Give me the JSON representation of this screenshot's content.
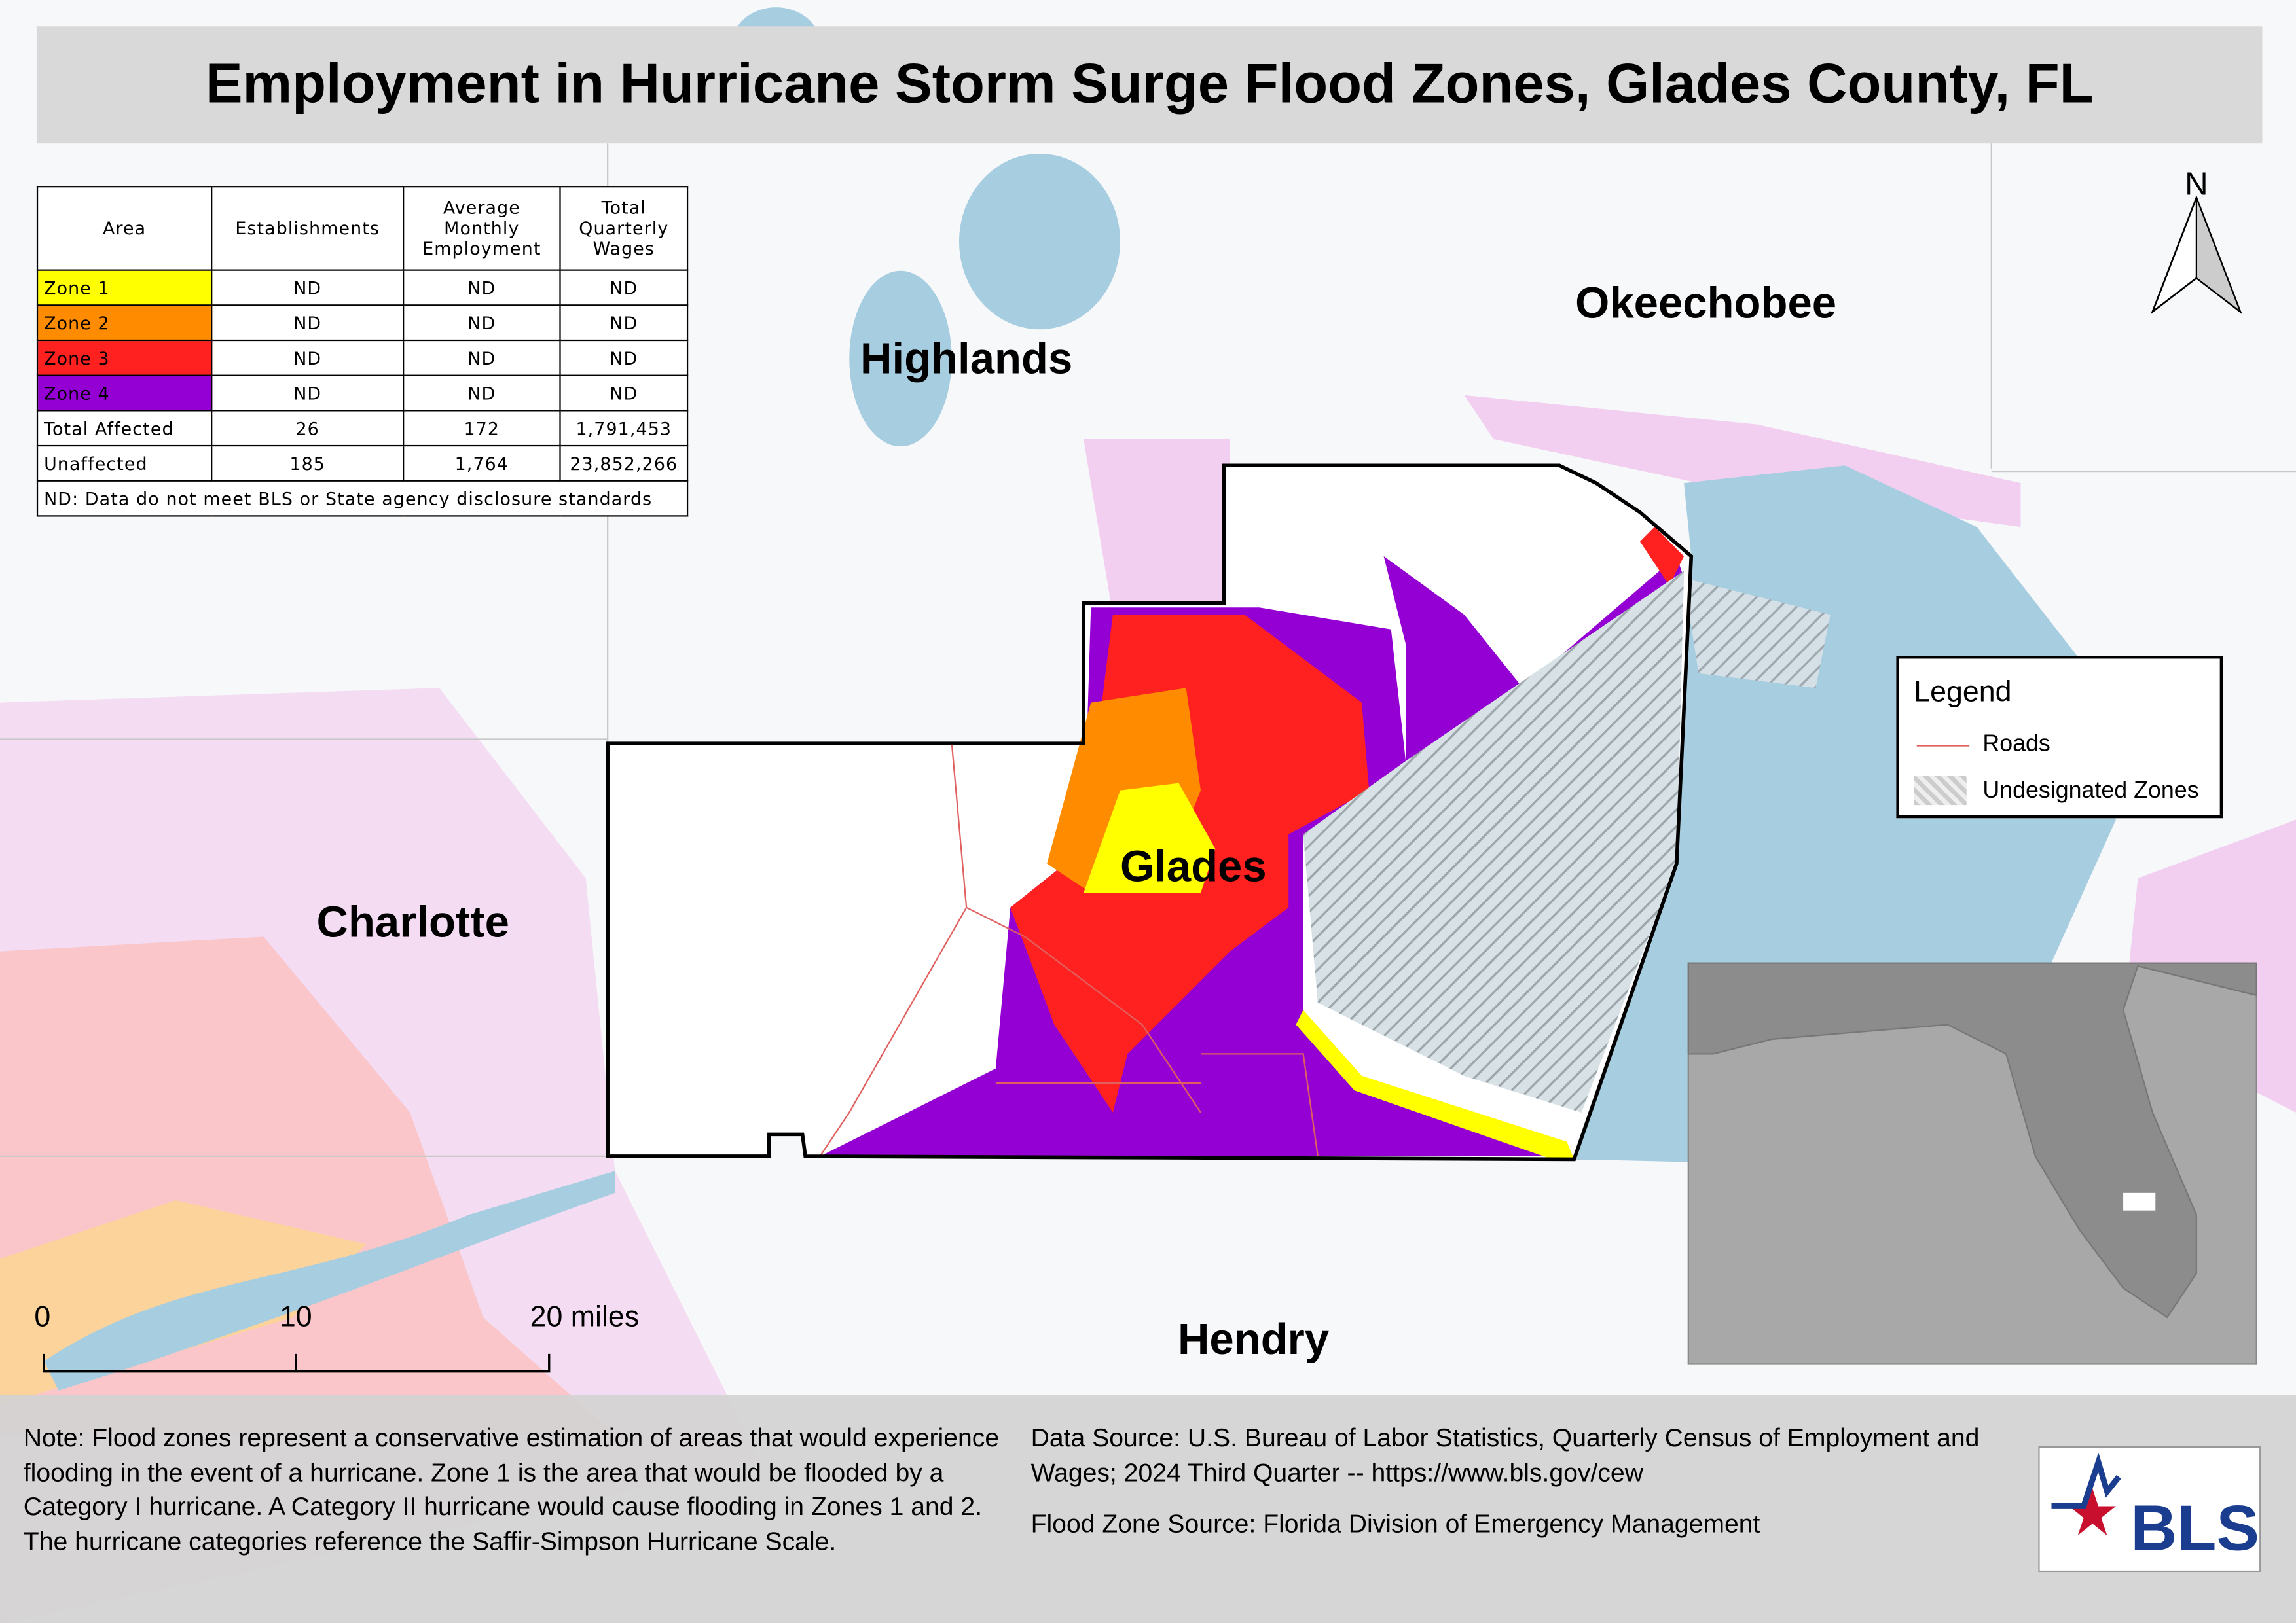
{
  "title": "Employment in Hurricane Storm Surge Flood Zones, Glades County, FL",
  "table": {
    "headers": [
      "Area",
      "Establishments",
      "Average Monthly Employment",
      "Total Quarterly Wages"
    ],
    "rows": [
      [
        "Zone 1",
        "ND",
        "ND",
        "ND"
      ],
      [
        "Zone 2",
        "ND",
        "ND",
        "ND"
      ],
      [
        "Zone 3",
        "ND",
        "ND",
        "ND"
      ],
      [
        "Zone 4",
        "ND",
        "ND",
        "ND"
      ],
      [
        "Total Affected",
        "26",
        "172",
        "1,791,453"
      ],
      [
        "Unaffected",
        "185",
        "1,764",
        "23,852,266"
      ]
    ],
    "footnote": "ND: Data do not meet BLS or State agency disclosure standards"
  },
  "map_labels": [
    "Highlands",
    "Okeechobee",
    "Charlotte",
    "Glades",
    "Hendry"
  ],
  "north": "N",
  "legend": {
    "title": "Legend",
    "items": [
      "Roads",
      "Undesignated Zones"
    ]
  },
  "scale_bar": {
    "labels": [
      "0",
      "10",
      "20 miles"
    ]
  },
  "notes": {
    "note": "Note: Flood zones represent a conservative estimation of areas that would experience flooding in the event of a hurricane. Zone 1 is the area that would be flooded by a Category I hurricane. A Category II hurricane would cause flooding in Zones 1 and 2. The hurricane categories reference the Saffir-Simpson Hurricane Scale.",
    "data_source": "Data Source: U.S. Bureau of Labor Statistics, Quarterly Census of Employment and Wages; 2024 Third Quarter -- https://www.bls.gov/cew",
    "flood_source": "Flood Zone Source: Florida Division of Emergency Management"
  },
  "logo": "BLS"
}
